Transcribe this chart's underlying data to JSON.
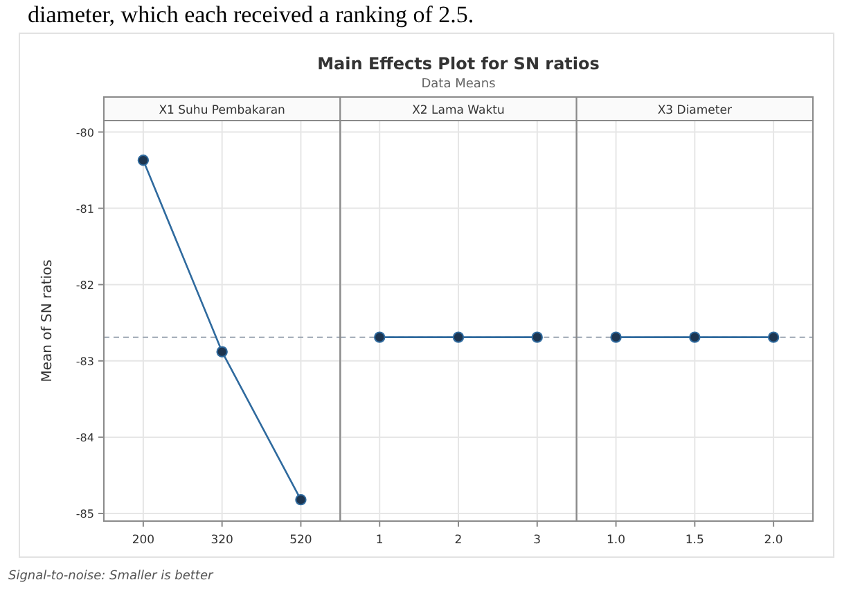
{
  "chart_data": [
    {
      "type": "other",
      "title": "Main Effects Plot for SN ratios",
      "subtitle": "Data Means",
      "annotations": [
        "diameter, which each received a ranking of 2.5.",
        "Signal-to-noise: Smaller is better"
      ]
    },
    {
      "type": "line",
      "title": "X1 Suhu Pembakaran",
      "ylabel": "Mean of SN ratios",
      "categories": [
        "200",
        "320",
        "520"
      ],
      "series": [
        {
          "color": "#2f6a9e",
          "values": [
            -80.37,
            -82.88,
            -84.82
          ]
        }
      ],
      "ylim": [
        -85.1,
        -79.85
      ],
      "yticks": [
        -80,
        -81,
        -82,
        -83,
        -84,
        -85
      ],
      "grid": true,
      "marker": "circle",
      "ref_lines": [
        {
          "axis": "y",
          "value": -82.69,
          "color": "#9aa5b1",
          "line_style": "dashed"
        }
      ]
    },
    {
      "type": "line",
      "title": "X2 Lama Waktu",
      "categories": [
        "1",
        "2",
        "3"
      ],
      "series": [
        {
          "color": "#2f6a9e",
          "values": [
            -82.69,
            -82.69,
            -82.69
          ]
        }
      ],
      "ylim": [
        -85.1,
        -79.85
      ],
      "yticks": [
        -80,
        -81,
        -82,
        -83,
        -84,
        -85
      ],
      "grid": true,
      "marker": "circle",
      "tick_labels": "x",
      "ref_lines": [
        {
          "axis": "y",
          "value": -82.69,
          "color": "#9aa5b1",
          "line_style": "dashed"
        }
      ]
    },
    {
      "type": "line",
      "title": "X3 Diameter",
      "categories": [
        "1.0",
        "1.5",
        "2.0"
      ],
      "series": [
        {
          "color": "#2f6a9e",
          "values": [
            -82.69,
            -82.69,
            -82.69
          ]
        }
      ],
      "ylim": [
        -85.1,
        -79.85
      ],
      "yticks": [
        -80,
        -81,
        -82,
        -83,
        -84,
        -85
      ],
      "grid": true,
      "marker": "circle",
      "tick_labels": "x",
      "ref_lines": [
        {
          "axis": "y",
          "value": -82.69,
          "color": "#9aa5b1",
          "line_style": "dashed"
        }
      ]
    }
  ]
}
